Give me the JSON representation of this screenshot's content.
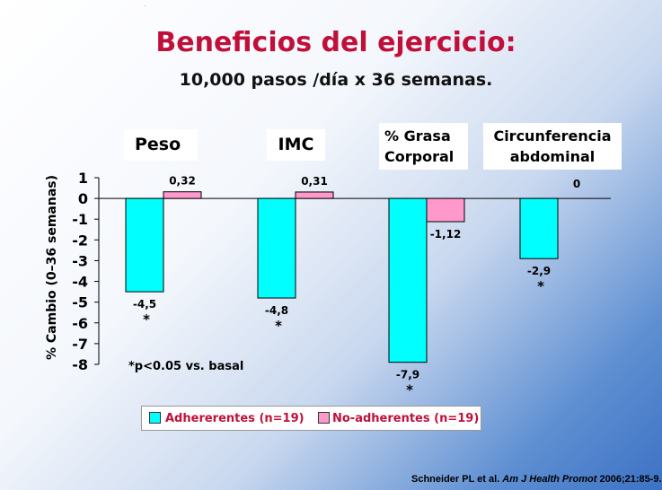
{
  "title": "Beneficios del ejercicio:",
  "subtitle": "10,000 pasos /día x 36 semanas.",
  "panels": {
    "peso": "Peso",
    "imc": "IMC",
    "grasa": "% Grasa\nCorporal",
    "circ": "Circunferencia\nabdominal"
  },
  "note": "*p<0.05 vs. basal",
  "legend": {
    "adherents": "Adhererentes (n=19)",
    "non_adherents": "No-adherentes (n=19)"
  },
  "citation": {
    "authors": "Schneider PL et al.",
    "journal": "Am J Health Promot",
    "ref": "2006;21:85-9."
  },
  "chart_data": {
    "type": "bar",
    "ylabel": "% Cambio (0–36 semanas)",
    "ylim": [
      -8,
      1
    ],
    "yticks": [
      "1",
      "0",
      "-1",
      "-2",
      "-3",
      "-4",
      "-5",
      "-6",
      "-7",
      "-8"
    ],
    "categories": [
      "Peso",
      "IMC",
      "% Grasa Corporal",
      "Circunferencia abdominal"
    ],
    "series": [
      {
        "name": "Adhererentes (n=19)",
        "color": "#00ffff",
        "values": [
          -4.5,
          -4.8,
          -7.9,
          -2.9
        ],
        "labels": [
          "-4,5",
          "-4,8",
          "-7,9",
          "-2,9"
        ],
        "significant": [
          true,
          true,
          true,
          true
        ]
      },
      {
        "name": "No-adherentes (n=19)",
        "color": "#ff99cc",
        "values": [
          0.32,
          0.31,
          -1.12,
          0
        ],
        "labels": [
          "0,32",
          "0,31",
          "-1,12",
          "0"
        ],
        "significant": [
          false,
          false,
          false,
          false
        ]
      }
    ],
    "significance_marker": "*"
  }
}
